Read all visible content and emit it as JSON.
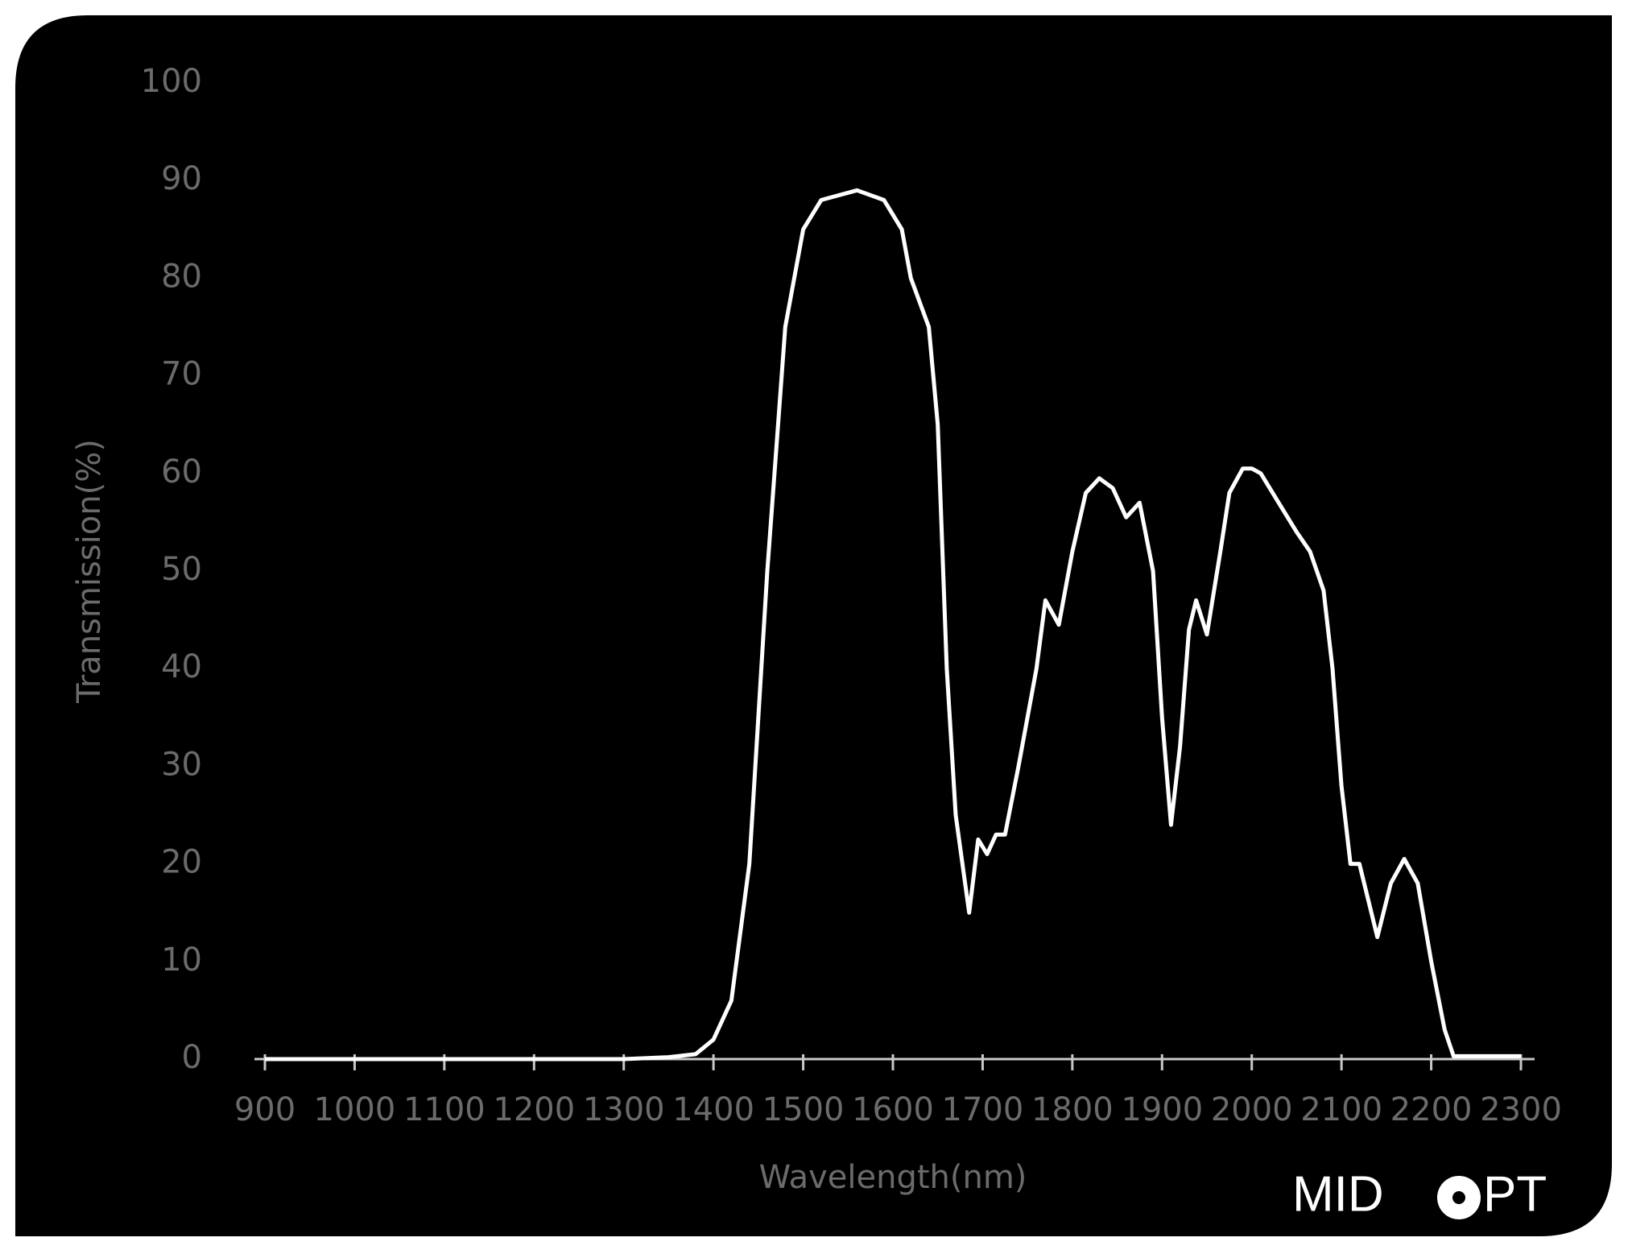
{
  "chart_data": {
    "type": "line",
    "x_label": "Wavelength(nm)",
    "y_label": "Transmission(%)",
    "x": [
      900,
      1000,
      1100,
      1200,
      1300,
      1350,
      1380,
      1400,
      1420,
      1440,
      1460,
      1480,
      1500,
      1520,
      1560,
      1590,
      1610,
      1620,
      1640,
      1650,
      1660,
      1670,
      1685,
      1695,
      1705,
      1715,
      1725,
      1740,
      1760,
      1770,
      1785,
      1800,
      1815,
      1830,
      1845,
      1860,
      1875,
      1890,
      1900,
      1910,
      1920,
      1930,
      1938,
      1950,
      1965,
      1975,
      1990,
      2000,
      2010,
      2030,
      2050,
      2065,
      2080,
      2090,
      2100,
      2110,
      2120,
      2140,
      2155,
      2170,
      2185,
      2200,
      2215,
      2225,
      2300
    ],
    "values": [
      0,
      0,
      0,
      0,
      0,
      0.2,
      0.5,
      2,
      6,
      20,
      50,
      75,
      85,
      88,
      89,
      88,
      85,
      80,
      75,
      65,
      40,
      25,
      15,
      22.5,
      21,
      23,
      23,
      30,
      40,
      47,
      44.5,
      52,
      58,
      59.5,
      58.5,
      55.5,
      57,
      50,
      35,
      24,
      32,
      44,
      47,
      43.5,
      52,
      58,
      60.5,
      60.5,
      60,
      57,
      54,
      52,
      48,
      40,
      28,
      20,
      20,
      12.5,
      18,
      20.5,
      18,
      10,
      3,
      0.3,
      0.3
    ],
    "color": "#ffffff",
    "xlim": [
      900,
      2300
    ],
    "xticks": [
      900,
      1000,
      1100,
      1200,
      1300,
      1400,
      1500,
      1600,
      1700,
      1800,
      1900,
      2000,
      2100,
      2200,
      2300
    ],
    "ylim": [
      0,
      100
    ],
    "yticks": [
      0,
      10,
      20,
      30,
      40,
      50,
      60,
      70,
      80,
      90,
      100
    ]
  },
  "logo": [
    "MID",
    "PT"
  ]
}
